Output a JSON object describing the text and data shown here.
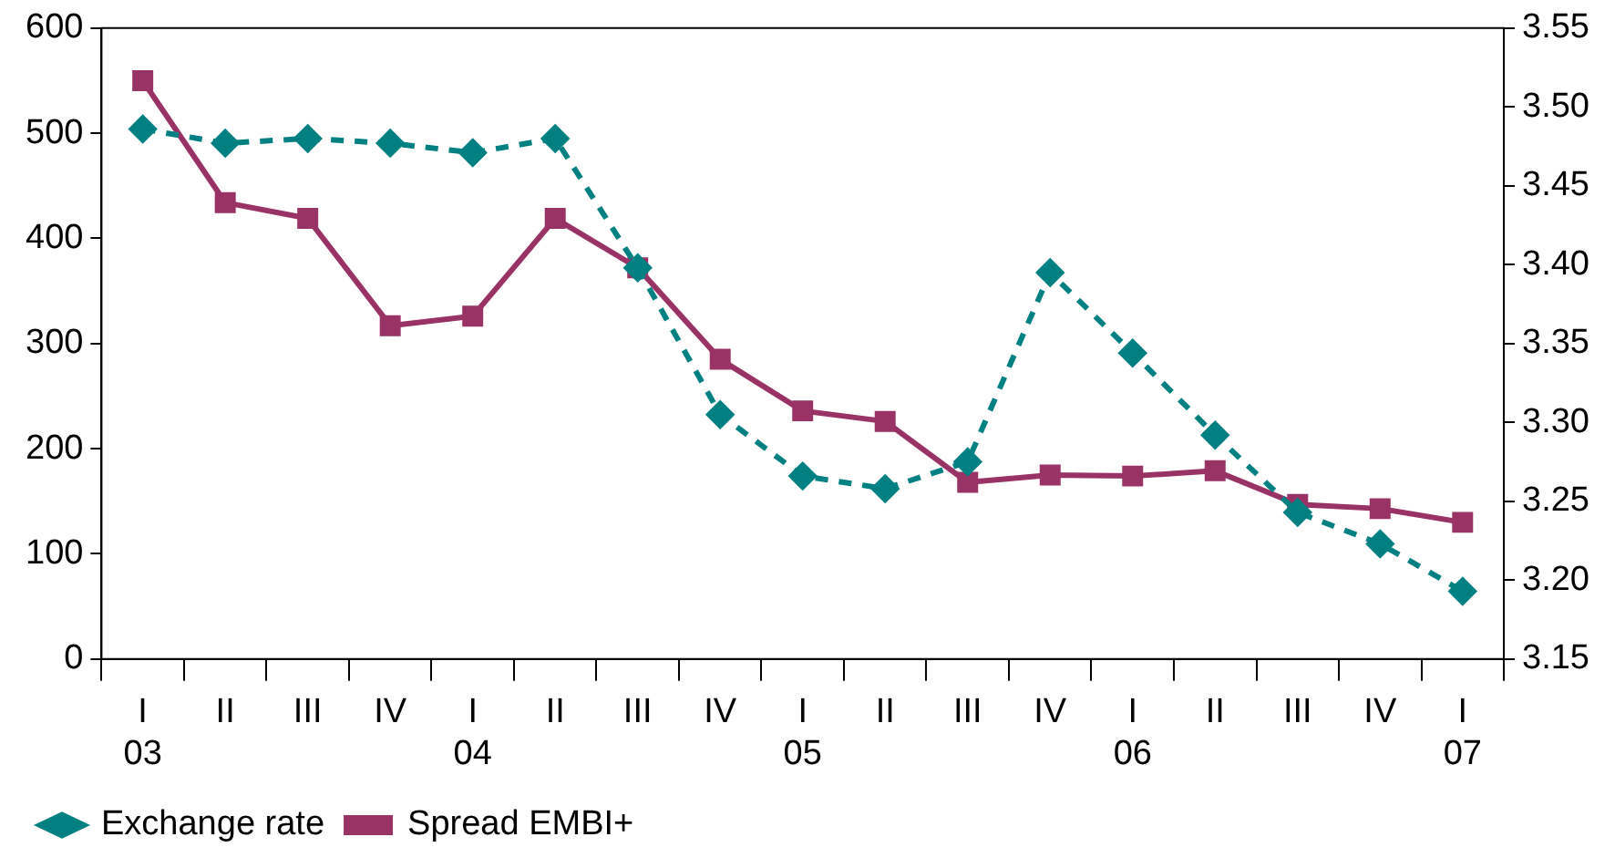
{
  "chart_data": {
    "type": "line",
    "categories": [
      "I\n03",
      "II",
      "III",
      "IV",
      "I\n04",
      "II",
      "III",
      "IV",
      "I\n05",
      "II",
      "III",
      "IV",
      "I\n06",
      "II",
      "III",
      "IV",
      "I\n07"
    ],
    "series": [
      {
        "name": "Spread EMBI+",
        "color": "#993366",
        "marker": "square",
        "line_style": "solid",
        "values": [
          550,
          434,
          419,
          317,
          326,
          419,
          372,
          285,
          236,
          226,
          168,
          175,
          174,
          179,
          147,
          143,
          130
        ]
      },
      {
        "name": "Exchange rate",
        "color": "#008080",
        "marker": "diamond",
        "line_style": "dashed",
        "axis": "y2",
        "values": [
          3.486,
          3.477,
          3.48,
          3.477,
          3.471,
          3.48,
          3.398,
          3.305,
          3.266,
          3.258,
          3.275,
          3.395,
          3.344,
          3.292,
          3.243,
          3.223,
          3.193
        ]
      }
    ],
    "ylim": [
      0,
      600
    ],
    "yticks": [
      0,
      100,
      200,
      300,
      400,
      500,
      600
    ],
    "y2lim": [
      3.15,
      3.55
    ],
    "y2ticks": [
      {
        "value": 3.15,
        "label": "3.15"
      },
      {
        "value": 3.2,
        "label": "3.20"
      },
      {
        "value": 3.25,
        "label": "3.25"
      },
      {
        "value": 3.3,
        "label": "3.30"
      },
      {
        "value": 3.35,
        "label": "3.35"
      },
      {
        "value": 3.4,
        "label": "3.40"
      },
      {
        "value": 3.45,
        "label": "3.45"
      },
      {
        "value": 3.5,
        "label": "3.50"
      },
      {
        "value": 3.55,
        "label": "3.55"
      }
    ],
    "grid": false,
    "legend": "bottom left"
  }
}
